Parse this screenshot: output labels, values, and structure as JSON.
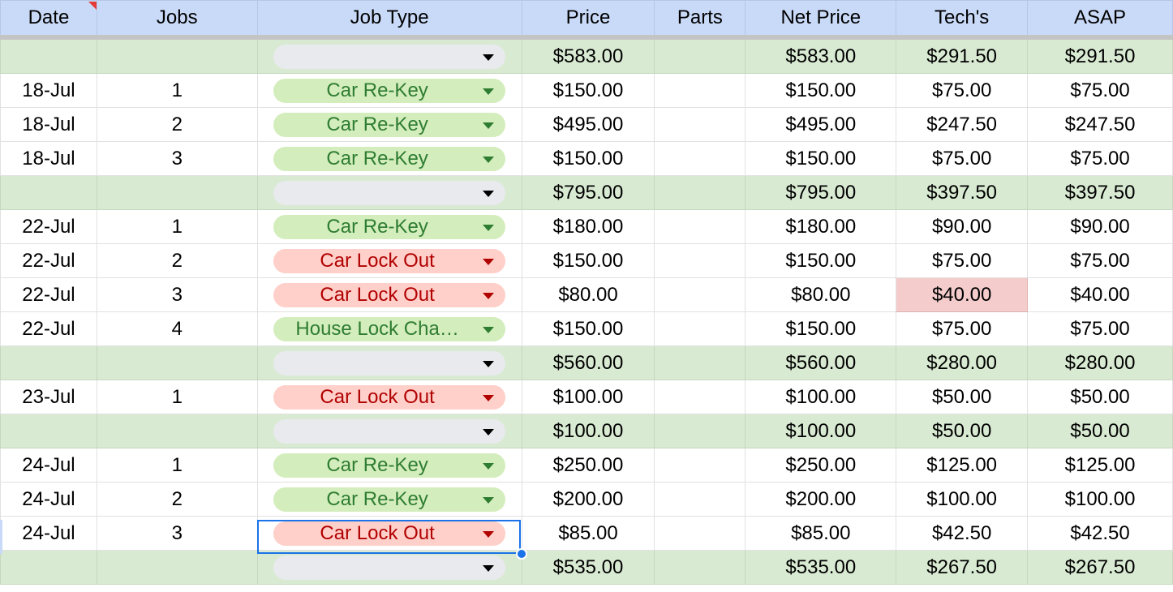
{
  "headers": [
    "Date",
    "Jobs",
    "Job Type",
    "Price",
    "Parts",
    "Net Price",
    "Tech's",
    "ASAP"
  ],
  "rows": [
    {
      "sub": true,
      "date": "",
      "jobs": "",
      "type": "",
      "chip": "empty",
      "price": "$583.00",
      "parts": "",
      "net": "$583.00",
      "tech": "$291.50",
      "asap": "$291.50"
    },
    {
      "date": "18-Jul",
      "jobs": "1",
      "type": "Car Re-Key",
      "chip": "green",
      "price": "$150.00",
      "parts": "",
      "net": "$150.00",
      "tech": "$75.00",
      "asap": "$75.00"
    },
    {
      "date": "18-Jul",
      "jobs": "2",
      "type": "Car Re-Key",
      "chip": "green",
      "price": "$495.00",
      "parts": "",
      "net": "$495.00",
      "tech": "$247.50",
      "asap": "$247.50"
    },
    {
      "date": "18-Jul",
      "jobs": "3",
      "type": "Car Re-Key",
      "chip": "green",
      "price": "$150.00",
      "parts": "",
      "net": "$150.00",
      "tech": "$75.00",
      "asap": "$75.00"
    },
    {
      "sub": true,
      "date": "",
      "jobs": "",
      "type": "",
      "chip": "empty",
      "price": "$795.00",
      "parts": "",
      "net": "$795.00",
      "tech": "$397.50",
      "asap": "$397.50"
    },
    {
      "date": "22-Jul",
      "jobs": "1",
      "type": "Car Re-Key",
      "chip": "green",
      "price": "$180.00",
      "parts": "",
      "net": "$180.00",
      "tech": "$90.00",
      "asap": "$90.00"
    },
    {
      "date": "22-Jul",
      "jobs": "2",
      "type": "Car Lock Out",
      "chip": "red",
      "price": "$150.00",
      "parts": "",
      "net": "$150.00",
      "tech": "$75.00",
      "asap": "$75.00"
    },
    {
      "date": "22-Jul",
      "jobs": "3",
      "type": "Car Lock Out",
      "chip": "red",
      "price": "$80.00",
      "parts": "",
      "net": "$80.00",
      "tech": "$40.00",
      "asap": "$40.00",
      "tech_flag": true
    },
    {
      "date": "22-Jul",
      "jobs": "4",
      "type": "House Lock Cha…",
      "chip": "green",
      "price": "$150.00",
      "parts": "",
      "net": "$150.00",
      "tech": "$75.00",
      "asap": "$75.00"
    },
    {
      "sub": true,
      "date": "",
      "jobs": "",
      "type": "",
      "chip": "empty",
      "price": "$560.00",
      "parts": "",
      "net": "$560.00",
      "tech": "$280.00",
      "asap": "$280.00"
    },
    {
      "date": "23-Jul",
      "jobs": "1",
      "type": "Car Lock Out",
      "chip": "red",
      "price": "$100.00",
      "parts": "",
      "net": "$100.00",
      "tech": "$50.00",
      "asap": "$50.00"
    },
    {
      "sub": true,
      "date": "",
      "jobs": "",
      "type": "",
      "chip": "empty",
      "price": "$100.00",
      "parts": "",
      "net": "$100.00",
      "tech": "$50.00",
      "asap": "$50.00"
    },
    {
      "date": "24-Jul",
      "jobs": "1",
      "type": "Car Re-Key",
      "chip": "green",
      "price": "$250.00",
      "parts": "",
      "net": "$250.00",
      "tech": "$125.00",
      "asap": "$125.00"
    },
    {
      "date": "24-Jul",
      "jobs": "2",
      "type": "Car Re-Key",
      "chip": "green",
      "price": "$200.00",
      "parts": "",
      "net": "$200.00",
      "tech": "$100.00",
      "asap": "$100.00"
    },
    {
      "date": "24-Jul",
      "jobs": "3",
      "type": "Car Lock Out",
      "chip": "red",
      "price": "$85.00",
      "parts": "",
      "net": "$85.00",
      "tech": "$42.50",
      "asap": "$42.50",
      "selected": true
    },
    {
      "sub": true,
      "date": "",
      "jobs": "",
      "type": "",
      "chip": "empty",
      "price": "$535.00",
      "parts": "",
      "net": "$535.00",
      "tech": "$267.50",
      "asap": "$267.50"
    }
  ],
  "colors": {
    "header_bg": "#c9daf8",
    "subtotal_bg": "#d9ead3",
    "chip_green_bg": "#d4edbc",
    "chip_green_text": "#2e7d32",
    "chip_red_bg": "#ffcfc9",
    "chip_red_text": "#b10202",
    "flag_bg": "#f4cccc",
    "selection": "#1a73e8"
  },
  "icons": {
    "dropdown": "chevron-down-icon",
    "note": "comment-indicator-icon",
    "fill_handle": "fill-handle-icon"
  }
}
